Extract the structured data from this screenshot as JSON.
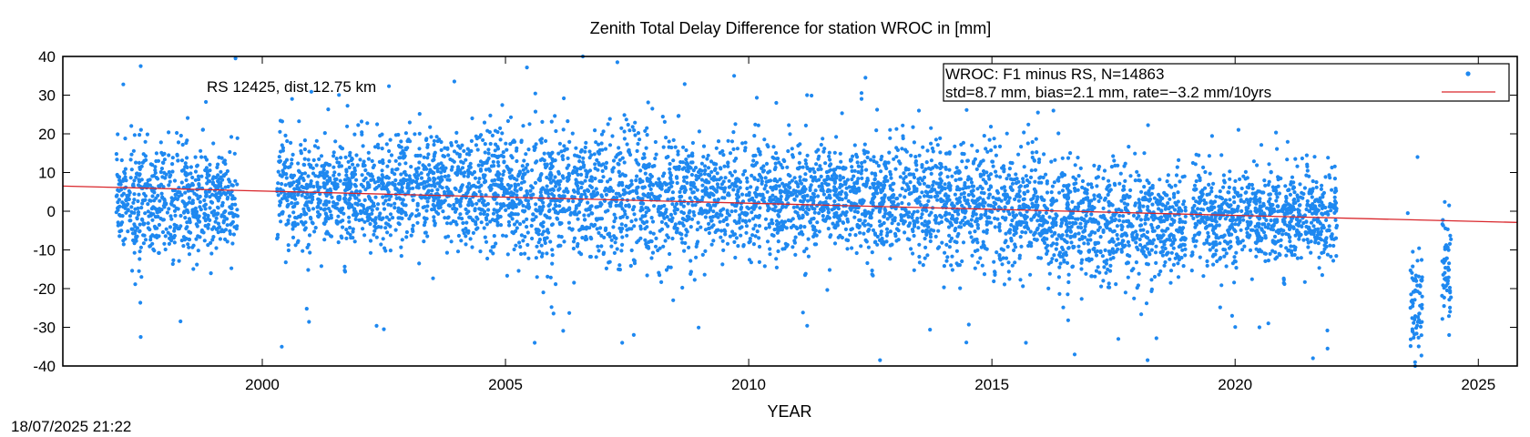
{
  "chart_data": {
    "type": "scatter",
    "title": "Zenith Total Delay Difference for station WROC in [mm]",
    "xlabel": "YEAR",
    "ylabel": "",
    "xlim": [
      1995.9,
      2025.8
    ],
    "ylim": [
      -40,
      40
    ],
    "xticks": [
      2000,
      2005,
      2010,
      2015,
      2020,
      2025
    ],
    "yticks": [
      -40,
      -30,
      -20,
      -10,
      0,
      10,
      20,
      30,
      40
    ],
    "annotation": "RS 12425, dist 12.75 km",
    "legend_position": "top-right",
    "grid": false,
    "colors": {
      "points": "#1e88f0",
      "trend": "#d9262b"
    },
    "series": [
      {
        "name": "WROC: F1 minus RS, N=14863",
        "kind": "points",
        "count": 14863,
        "std_mm": 8.7,
        "bias_mm": 2.1,
        "segments": [
          {
            "x": [
              1997.0,
              1999.5
            ],
            "y_mean": 3,
            "y_sd": 7
          },
          {
            "x": [
              2000.3,
              2002.5
            ],
            "y_mean": 4,
            "y_sd": 7
          },
          {
            "x": [
              2002.5,
              2005.0
            ],
            "y_mean": 6,
            "y_sd": 7
          },
          {
            "x": [
              2005.0,
              2010.0
            ],
            "y_mean": 4,
            "y_sd": 8
          },
          {
            "x": [
              2010.0,
              2014.0
            ],
            "y_mean": 3,
            "y_sd": 7
          },
          {
            "x": [
              2014.0,
              2016.0
            ],
            "y_mean": 1,
            "y_sd": 8
          },
          {
            "x": [
              2016.0,
              2019.0
            ],
            "y_mean": -3,
            "y_sd": 7
          },
          {
            "x": [
              2019.1,
              2022.1
            ],
            "y_mean": -2,
            "y_sd": 6
          },
          {
            "x": [
              2023.6,
              2023.85
            ],
            "y_mean": -25,
            "y_sd": 6
          },
          {
            "x": [
              2024.25,
              2024.45
            ],
            "y_mean": -14,
            "y_sd": 6
          }
        ],
        "outliers": [
          [
            1997.5,
            37.5
          ],
          [
            1999.45,
            39.5
          ],
          [
            1997.5,
            -32.5
          ],
          [
            2000.4,
            -35
          ],
          [
            2002.5,
            -30.5
          ],
          [
            2005.6,
            -34
          ],
          [
            2007.3,
            38.5
          ],
          [
            2007.4,
            -34
          ],
          [
            2009.7,
            35
          ],
          [
            2012.4,
            34.5
          ],
          [
            2012.7,
            -38.5
          ],
          [
            2016.7,
            -37
          ],
          [
            2018.2,
            -38.5
          ],
          [
            2021.6,
            -38
          ],
          [
            2021.9,
            -35.5
          ],
          [
            2023.55,
            -0.5
          ],
          [
            2023.75,
            14
          ],
          [
            2024.4,
            1.5
          ],
          [
            2023.7,
            -39
          ],
          [
            2024.4,
            -32
          ],
          [
            2015.7,
            -34
          ],
          [
            2017.6,
            -33
          ],
          [
            2020.5,
            -30
          ],
          [
            2013.5,
            26
          ],
          [
            2011.2,
            30
          ]
        ]
      },
      {
        "name": "std=8.7 mm, bias=2.1 mm, rate=−3.2 mm/10yrs",
        "kind": "line",
        "line": [
          [
            1995.9,
            6.5
          ],
          [
            2025.8,
            -2.9
          ]
        ]
      }
    ]
  },
  "footer": {
    "timestamp": "18/07/2025 21:22"
  }
}
